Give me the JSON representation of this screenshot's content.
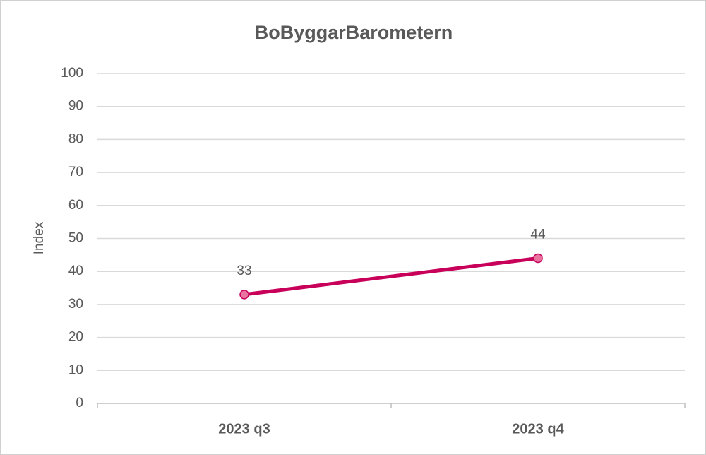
{
  "chart_data": {
    "type": "line",
    "title": "BoByggarBarometern",
    "y_label": "Index",
    "categories": [
      "2023 q3",
      "2023 q4"
    ],
    "series": [
      {
        "name": "BoByggarBarometern",
        "color": "#c8005a",
        "marker_color": "#e9749f",
        "values": [
          33,
          44
        ]
      }
    ],
    "ylim": [
      0,
      100
    ],
    "yticks": [
      0,
      10,
      20,
      30,
      40,
      50,
      60,
      70,
      80,
      90,
      100
    ],
    "grid": true
  }
}
